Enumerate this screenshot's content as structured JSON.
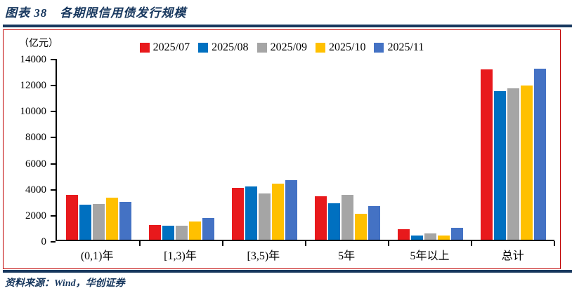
{
  "header": {
    "title": "图表 38　各期限信用债发行规模"
  },
  "footer": {
    "source": "资料来源：Wind，华创证券"
  },
  "colors": {
    "accent_navy": "#17375E",
    "frame_border_red": "#C00000",
    "axis_black": "#000000"
  },
  "chart_data": {
    "type": "bar",
    "title": "各期限信用债发行规模",
    "unit_label": "（亿元）",
    "categories": [
      "(0,1)年",
      "[1,3)年",
      "[3,5)年",
      "5年",
      "5年以上",
      "总计"
    ],
    "series": [
      {
        "name": "2025/07",
        "color": "#E8191C",
        "values": [
          3450,
          1150,
          4000,
          3350,
          800,
          13100
        ]
      },
      {
        "name": "2025/08",
        "color": "#0070C0",
        "values": [
          2700,
          1100,
          4100,
          2800,
          350,
          11400
        ]
      },
      {
        "name": "2025/09",
        "color": "#A5A5A5",
        "values": [
          2750,
          1100,
          3550,
          3450,
          500,
          11650
        ]
      },
      {
        "name": "2025/10",
        "color": "#FFC000",
        "values": [
          3250,
          1400,
          4300,
          2000,
          350,
          11850
        ]
      },
      {
        "name": "2025/11",
        "color": "#4472C4",
        "values": [
          2900,
          1650,
          4600,
          2600,
          900,
          13150
        ]
      }
    ],
    "ylim": [
      0,
      14000
    ],
    "yticks": [
      0,
      2000,
      4000,
      6000,
      8000,
      10000,
      12000,
      14000
    ],
    "legend_position": "top",
    "grid": false
  }
}
